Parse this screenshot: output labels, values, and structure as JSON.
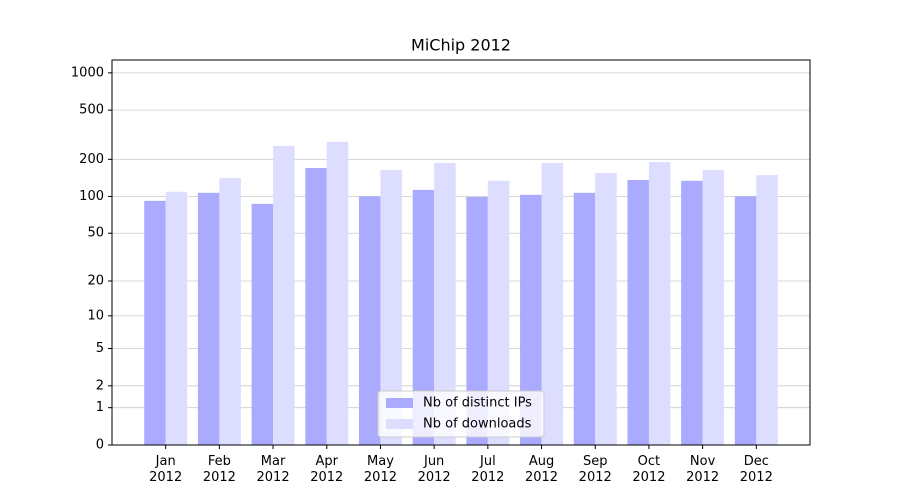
{
  "chart_data": {
    "type": "bar",
    "title": "MiChip 2012",
    "categories": [
      "Jan\n2012",
      "Feb\n2012",
      "Mar\n2012",
      "Apr\n2012",
      "May\n2012",
      "Jun\n2012",
      "Jul\n2012",
      "Aug\n2012",
      "Sep\n2012",
      "Oct\n2012",
      "Nov\n2012",
      "Dec\n2012"
    ],
    "series": [
      {
        "name": "Nb of distinct IPs",
        "color": "#aaaaff",
        "values": [
          92,
          107,
          87,
          170,
          100,
          113,
          99,
          103,
          107,
          136,
          134,
          100
        ]
      },
      {
        "name": "Nb of downloads",
        "color": "#ddddff",
        "values": [
          109,
          141,
          257,
          277,
          164,
          187,
          134,
          187,
          155,
          190,
          164,
          149
        ]
      }
    ],
    "yscale": "log1p",
    "ylim": [
      0,
      1270
    ],
    "yticks": [
      0,
      1,
      2,
      5,
      10,
      20,
      50,
      100,
      200,
      500,
      1000
    ],
    "grid": true,
    "legend": "lower center"
  }
}
